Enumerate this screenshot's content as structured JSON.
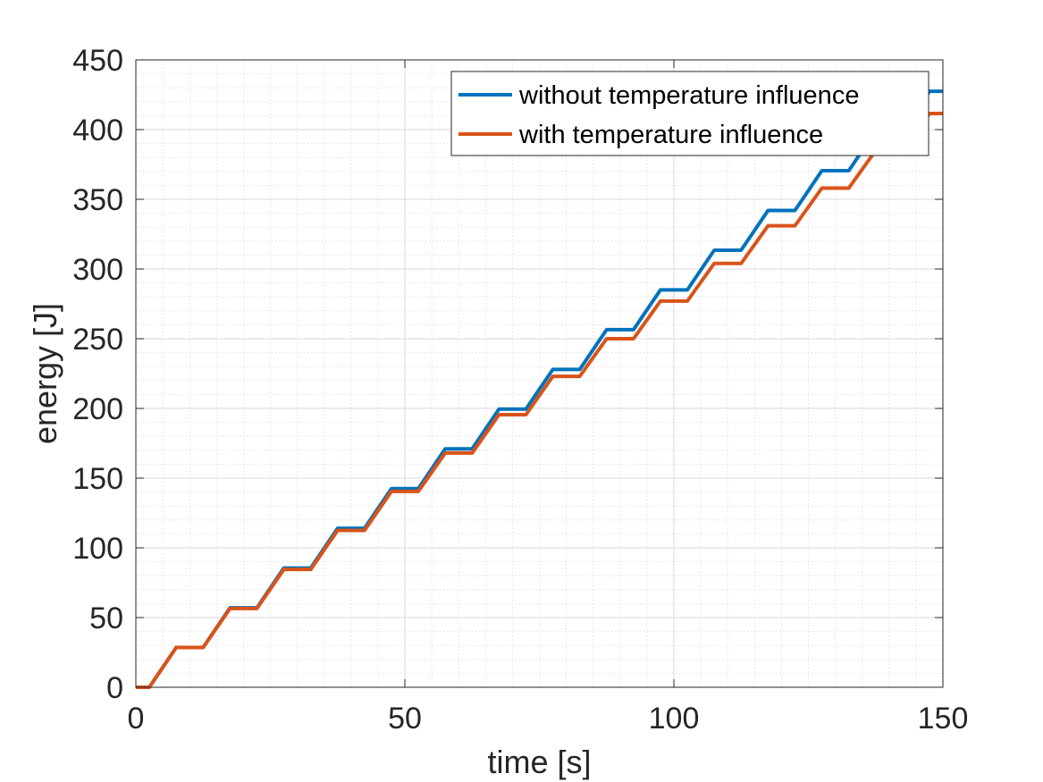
{
  "chart_data": {
    "type": "line",
    "xlabel": "time [s]",
    "ylabel": "energy [J]",
    "xlim": [
      0,
      150
    ],
    "ylim": [
      0,
      450
    ],
    "xticks": [
      0,
      50,
      100,
      150
    ],
    "yticks": [
      0,
      50,
      100,
      150,
      200,
      250,
      300,
      350,
      400,
      450
    ],
    "grid": true,
    "minor_grid": true,
    "legend_position": "top-right",
    "series": [
      {
        "name": "without temperature influence",
        "color": "#0072BD",
        "x": [
          0,
          2.5,
          7.5,
          12.5,
          17.5,
          22.5,
          27.5,
          32.5,
          37.5,
          42.5,
          47.5,
          52.5,
          57.5,
          62.5,
          67.5,
          72.5,
          77.5,
          82.5,
          87.5,
          92.5,
          97.5,
          102.5,
          107.5,
          112.5,
          117.5,
          122.5,
          127.5,
          132.5,
          137.5,
          142.5,
          147.5,
          150
        ],
        "y": [
          0,
          0,
          28.5,
          28.5,
          57,
          57,
          85.5,
          85.5,
          114,
          114,
          142.5,
          142.5,
          171,
          171,
          199.5,
          199.5,
          228,
          228,
          256.5,
          256.5,
          285,
          285,
          313.5,
          313.5,
          342,
          342,
          370.5,
          370.5,
          399,
          399,
          427.5,
          427.5
        ]
      },
      {
        "name": "with temperature influence",
        "color": "#D95319",
        "x": [
          0,
          2.5,
          7.5,
          12.5,
          17.5,
          22.5,
          27.5,
          32.5,
          37.5,
          42.5,
          47.5,
          52.5,
          57.5,
          62.5,
          67.5,
          72.5,
          77.5,
          82.5,
          87.5,
          92.5,
          97.5,
          102.5,
          107.5,
          112.5,
          117.5,
          122.5,
          127.5,
          132.5,
          137.5,
          142.5,
          147.5,
          150
        ],
        "y": [
          0,
          0,
          28.5,
          28.5,
          56.5,
          56.5,
          84.5,
          84.5,
          112.5,
          112.5,
          140.5,
          140.5,
          168,
          168,
          195.5,
          195.5,
          223,
          223,
          250,
          250,
          277,
          277,
          304,
          304,
          331,
          331,
          358,
          358,
          385,
          385,
          411.5,
          411.5
        ]
      }
    ]
  }
}
